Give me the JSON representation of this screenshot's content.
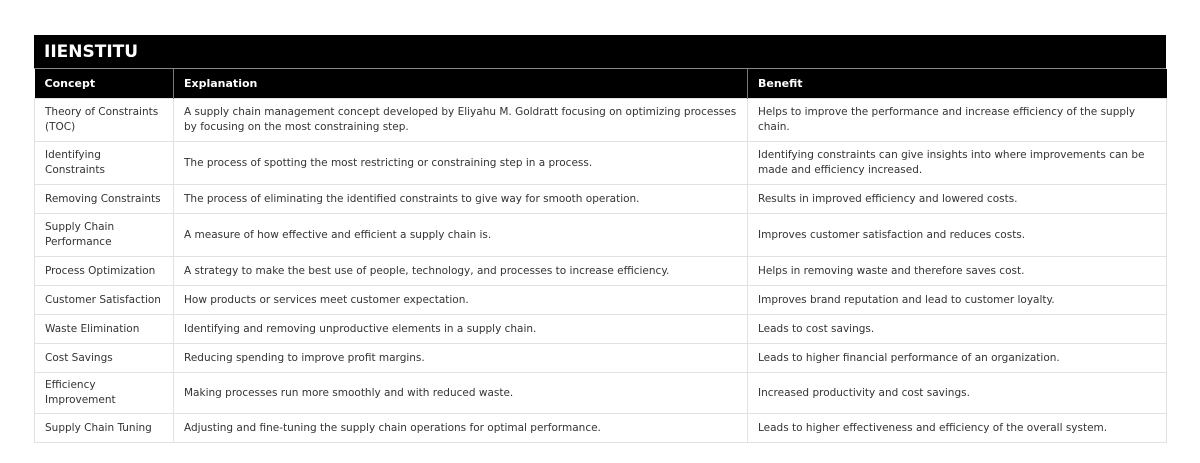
{
  "title": "IIENSTITU",
  "columns": [
    "Concept",
    "Explanation",
    "Benefit"
  ],
  "rows": [
    [
      "Theory of Constraints (TOC)",
      "A supply chain management concept developed by Eliyahu M. Goldratt focusing on optimizing processes by focusing on the most constraining step.",
      "Helps to improve the performance and increase efficiency of the supply chain."
    ],
    [
      "Identifying Constraints",
      "The process of spotting the most restricting or constraining step in a process.",
      "Identifying constraints can give insights into where improvements can be made and efficiency increased."
    ],
    [
      "Removing Constraints",
      "The process of eliminating the identified constraints to give way for smooth operation.",
      "Results in improved efficiency and lowered costs."
    ],
    [
      "Supply Chain Performance",
      "A measure of how effective and efficient a supply chain is.",
      "Improves customer satisfaction and reduces costs."
    ],
    [
      "Process Optimization",
      "A strategy to make the best use of people, technology, and processes to increase efficiency.",
      "Helps in removing waste and therefore saves cost."
    ],
    [
      "Customer Satisfaction",
      "How products or services meet customer expectation.",
      "Improves brand reputation and lead to customer loyalty."
    ],
    [
      "Waste Elimination",
      "Identifying and removing unproductive elements in a supply chain.",
      "Leads to cost savings."
    ],
    [
      "Cost Savings",
      "Reducing spending to improve profit margins.",
      "Leads to higher financial performance of an organization."
    ],
    [
      "Efficiency Improvement",
      "Making processes run more smoothly and with reduced waste.",
      "Increased productivity and cost savings."
    ],
    [
      "Supply Chain Tuning",
      "Adjusting and fine-tuning the supply chain operations for optimal performance.",
      "Leads to higher effectiveness and efficiency of the overall system."
    ]
  ]
}
